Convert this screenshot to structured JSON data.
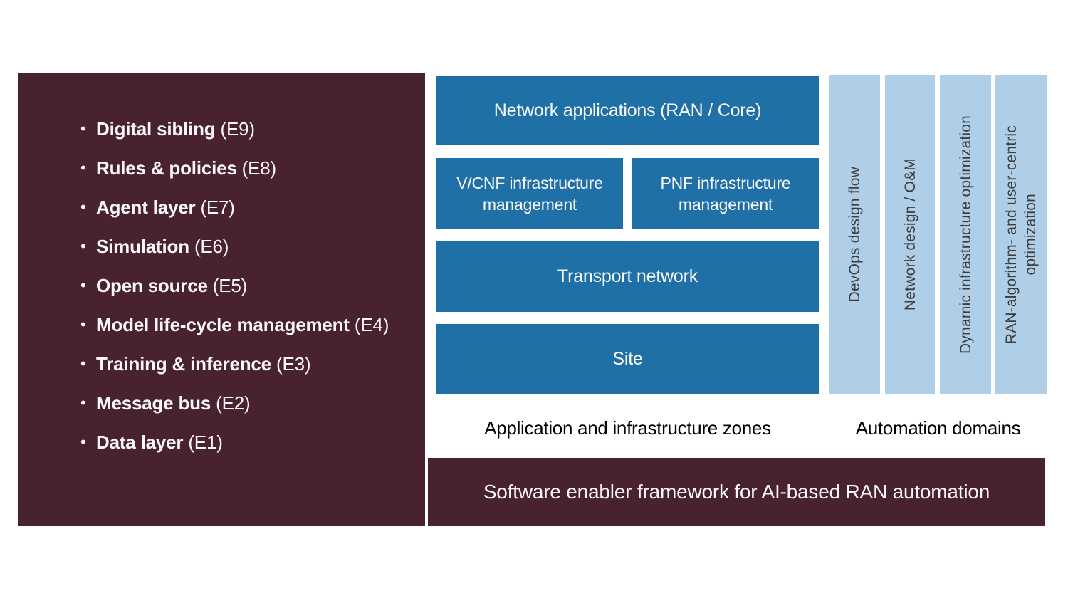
{
  "palette": {
    "maroon": "#48222F",
    "dark_blue": "#1F70A6",
    "light_blue": "#AFCFE9",
    "bar_text_gray": "#3D3D3D",
    "caption_black": "#000000",
    "text_white": "#FAF7F8"
  },
  "enablers": {
    "items": [
      {
        "name": "Digital sibling",
        "tag": "(E9)"
      },
      {
        "name": "Rules & policies",
        "tag": "(E8)"
      },
      {
        "name": "Agent layer",
        "tag": "(E7)"
      },
      {
        "name": "Simulation",
        "tag": "(E6)"
      },
      {
        "name": "Open source",
        "tag": "(E5)"
      },
      {
        "name": "Model life-cycle management",
        "tag": "(E4)"
      },
      {
        "name": "Training & inference",
        "tag": "(E3)"
      },
      {
        "name": "Message bus",
        "tag": "(E2)"
      },
      {
        "name": "Data layer",
        "tag": "(E1)"
      }
    ]
  },
  "zones": {
    "network_apps": "Network applications (RAN / Core)",
    "vcnf": "V/CNF infrastructure management",
    "pnf": "PNF infrastructure management",
    "transport": "Transport network",
    "site": "Site",
    "caption": "Application and infrastructure zones"
  },
  "domains": {
    "bars": [
      {
        "lines": [
          "DevOps design flow"
        ]
      },
      {
        "lines": [
          "Network design / O&M"
        ]
      },
      {
        "lines": [
          "Dynamic infrastructure optimization"
        ]
      },
      {
        "lines": [
          "RAN-algorithm- and user-centric",
          "optimization"
        ]
      }
    ],
    "caption": "Automation domains"
  },
  "footer": {
    "title": "Software enabler framework for AI-based RAN automation"
  }
}
